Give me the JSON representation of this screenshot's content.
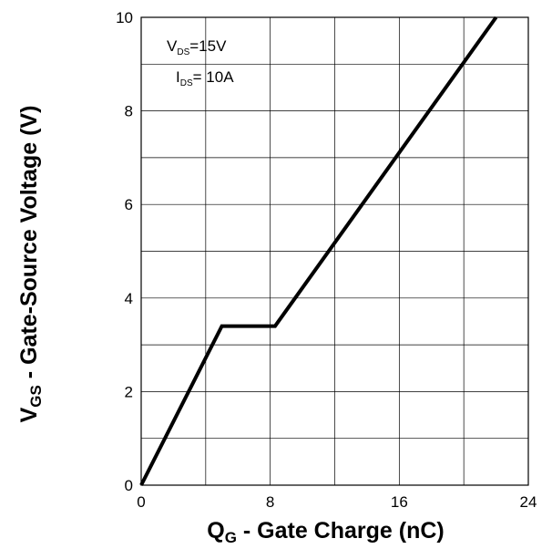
{
  "chart_data": {
    "type": "line",
    "title": "",
    "xlabel": {
      "main": "Q",
      "sub": "G",
      "rest": " - Gate Charge (nC)"
    },
    "ylabel": {
      "main": "V",
      "sub": "GS",
      "rest": " - Gate-Source Voltage (V)"
    },
    "xlim": [
      0,
      24
    ],
    "ylim": [
      0,
      10
    ],
    "xticks": [
      0,
      8,
      16,
      24
    ],
    "yticks": [
      0,
      2,
      4,
      6,
      8,
      10
    ],
    "grid": true,
    "line_color": "#000000",
    "annotation": [
      {
        "main": "V",
        "sub": "DS",
        "rest": "=15V"
      },
      {
        "main": "I",
        "sub": "DS",
        "rest": "= 10A"
      }
    ],
    "series": [
      {
        "x": [
          0,
          5,
          8.3,
          22
        ],
        "y": [
          0,
          3.4,
          3.4,
          10
        ]
      }
    ]
  }
}
